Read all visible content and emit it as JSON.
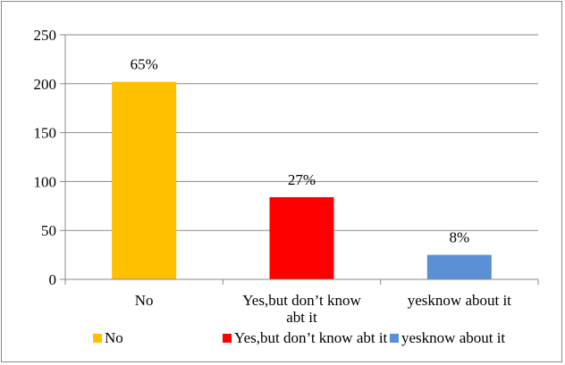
{
  "chart_data": {
    "type": "bar",
    "categories": [
      "No",
      "Yes,but don’t know abt it",
      "yesknow about it"
    ],
    "category_label_lines": [
      [
        "No"
      ],
      [
        "Yes,but don’t know",
        "abt it"
      ],
      [
        "yesknow about it"
      ]
    ],
    "values": [
      202,
      84,
      25
    ],
    "data_labels": [
      "65%",
      "27%",
      "8%"
    ],
    "colors": [
      "#FFC000",
      "#FF0000",
      "#5B8FD6"
    ],
    "ylim": [
      0,
      250
    ],
    "yticks": [
      0,
      50,
      100,
      150,
      200,
      250
    ],
    "grid": true,
    "legend": {
      "position": "bottom",
      "entries": [
        "No",
        "Yes,but don’t know abt it",
        "yesknow about it"
      ]
    }
  }
}
